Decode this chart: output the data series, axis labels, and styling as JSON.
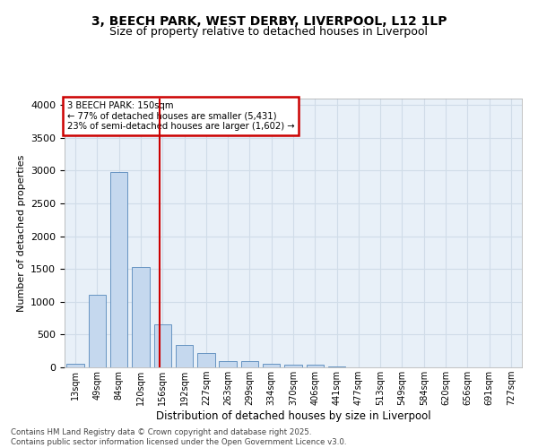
{
  "title_line1": "3, BEECH PARK, WEST DERBY, LIVERPOOL, L12 1LP",
  "title_line2": "Size of property relative to detached houses in Liverpool",
  "xlabel": "Distribution of detached houses by size in Liverpool",
  "ylabel": "Number of detached properties",
  "categories": [
    "13sqm",
    "49sqm",
    "84sqm",
    "120sqm",
    "156sqm",
    "192sqm",
    "227sqm",
    "263sqm",
    "299sqm",
    "334sqm",
    "370sqm",
    "406sqm",
    "441sqm",
    "477sqm",
    "513sqm",
    "549sqm",
    "584sqm",
    "620sqm",
    "656sqm",
    "691sqm",
    "727sqm"
  ],
  "values": [
    50,
    1110,
    2980,
    1530,
    660,
    340,
    220,
    90,
    90,
    60,
    35,
    35,
    20,
    5,
    0,
    0,
    0,
    0,
    0,
    0,
    0
  ],
  "bar_color": "#c5d8ee",
  "bar_edge_color": "#5588bb",
  "vline_color": "#cc0000",
  "vline_x_index": 3.85,
  "annotation_title": "3 BEECH PARK: 150sqm",
  "annotation_line2": "← 77% of detached houses are smaller (5,431)",
  "annotation_line3": "23% of semi-detached houses are larger (1,602) →",
  "annotation_box_color": "#cc0000",
  "ylim": [
    0,
    4100
  ],
  "yticks": [
    0,
    500,
    1000,
    1500,
    2000,
    2500,
    3000,
    3500,
    4000
  ],
  "grid_color": "#d0dce8",
  "background_color": "#e8f0f8",
  "footer_line1": "Contains HM Land Registry data © Crown copyright and database right 2025.",
  "footer_line2": "Contains public sector information licensed under the Open Government Licence v3.0."
}
